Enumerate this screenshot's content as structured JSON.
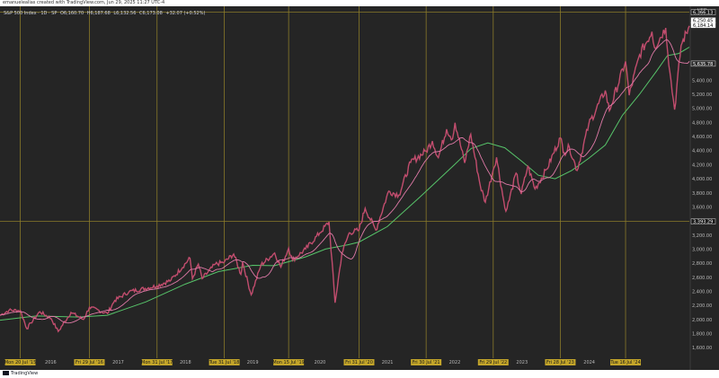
{
  "header": {
    "credit": "emanuelealias created with TradingView.com, Jun 29, 2025 11:27 UTC-4"
  },
  "legend": {
    "symbol": "S&P 500 Index · 1D · SP",
    "open": "O6,160.70",
    "high": "H6,187.68",
    "low": "L6,132.56",
    "close": "C6,173.08",
    "change": "+32.07 (+0.52%)"
  },
  "footer": {
    "logo": "TradingView"
  },
  "colors": {
    "background": "#252525",
    "grid": "#8a7a2a",
    "price": "#c24d6e",
    "ma_fast": "#e07aa8",
    "ma_slow": "#57c46a",
    "axis_text": "#b8b8b8",
    "tag_fill": "#c4a62a"
  },
  "chart_data": {
    "type": "line",
    "title": "",
    "currency": "USD",
    "xlabel": "",
    "ylabel": "",
    "xlim": [
      "2015-04-01",
      "2025-06-27"
    ],
    "ylim": [
      1500,
      6400
    ],
    "y_ticks": [
      1600,
      1800,
      2000,
      2200,
      2400,
      2600,
      2800,
      3000,
      3200,
      3400,
      3600,
      3800,
      4000,
      4200,
      4400,
      4600,
      4800,
      5000,
      5200,
      5400
    ],
    "y_tick_labels": [
      "1,600.00",
      "1,800.00",
      "2,000.00",
      "2,200.00",
      "2,400.00",
      "2,600.00",
      "2,800.00",
      "3,000.00",
      "3,200.00",
      "3,400.00",
      "3,600.00",
      "3,800.00",
      "4,000.00",
      "4,200.00",
      "4,400.00",
      "4,600.00",
      "4,800.00",
      "5,000.00",
      "5,200.00",
      "5,400.00"
    ],
    "year_labels": [
      {
        "date": "2016-01-01",
        "label": "2016"
      },
      {
        "date": "2017-01-01",
        "label": "2017"
      },
      {
        "date": "2018-01-01",
        "label": "2018"
      },
      {
        "date": "2019-01-01",
        "label": "2019"
      },
      {
        "date": "2020-01-01",
        "label": "2020"
      },
      {
        "date": "2021-01-01",
        "label": "2021"
      },
      {
        "date": "2022-01-01",
        "label": "2022"
      },
      {
        "date": "2023-01-01",
        "label": "2023"
      },
      {
        "date": "2024-01-01",
        "label": "2024"
      }
    ],
    "vertical_markers": [
      {
        "date": "2015-07-20",
        "label": "Mon 20 Jul '15"
      },
      {
        "date": "2016-07-29",
        "label": "Fri 29 Jul '16"
      },
      {
        "date": "2017-07-31",
        "label": "Mon 31 Jul '17"
      },
      {
        "date": "2018-07-31",
        "label": "Tue 31 Jul '18"
      },
      {
        "date": "2019-07-15",
        "label": "Mon 15 Jul '19"
      },
      {
        "date": "2020-07-31",
        "label": "Fri 31 Jul '20"
      },
      {
        "date": "2021-07-30",
        "label": "Fri 30 Jul '21"
      },
      {
        "date": "2022-07-29",
        "label": "Fri 29 Jul '22"
      },
      {
        "date": "2023-07-28",
        "label": "Fri 28 Jul '23"
      },
      {
        "date": "2024-07-16",
        "label": "Tue 16 Jul '24"
      }
    ],
    "horizontal_markers": [
      {
        "value": 6366.13,
        "label": "6,366.13"
      },
      {
        "value": 3393.29,
        "label": "3,393.29"
      }
    ],
    "price_tags": [
      {
        "value": 6250.45,
        "label": "6,250.45"
      },
      {
        "value": 6184.14,
        "label": "6,184.14"
      },
      {
        "value": 5635.78,
        "label": "5,635.78"
      }
    ],
    "series": [
      {
        "role": "price",
        "dates": [
          "2015-04-01",
          "2015-05-20",
          "2015-07-20",
          "2015-08-25",
          "2015-09-15",
          "2015-11-03",
          "2016-01-04",
          "2016-02-11",
          "2016-04-20",
          "2016-06-27",
          "2016-07-29",
          "2016-11-04",
          "2016-12-13",
          "2017-03-01",
          "2017-07-31",
          "2017-10-15",
          "2018-01-26",
          "2018-02-08",
          "2018-03-12",
          "2018-04-02",
          "2018-06-12",
          "2018-07-31",
          "2018-09-20",
          "2018-10-29",
          "2018-11-07",
          "2018-12-24",
          "2019-02-15",
          "2019-04-30",
          "2019-06-03",
          "2019-07-15",
          "2019-08-05",
          "2019-10-15",
          "2019-12-31",
          "2020-02-19",
          "2020-03-23",
          "2020-04-29",
          "2020-06-08",
          "2020-07-31",
          "2020-09-02",
          "2020-10-30",
          "2021-01-08",
          "2021-03-04",
          "2021-05-07",
          "2021-07-30",
          "2021-09-02",
          "2021-10-04",
          "2021-11-18",
          "2021-12-20",
          "2022-01-03",
          "2022-02-24",
          "2022-03-29",
          "2022-05-20",
          "2022-06-16",
          "2022-07-29",
          "2022-08-16",
          "2022-09-30",
          "2022-10-12",
          "2022-11-30",
          "2022-12-28",
          "2023-02-02",
          "2023-03-13",
          "2023-05-15",
          "2023-07-28",
          "2023-08-18",
          "2023-09-15",
          "2023-10-27",
          "2023-12-29",
          "2024-03-28",
          "2024-04-19",
          "2024-07-16",
          "2024-08-05",
          "2024-09-30",
          "2024-12-06",
          "2024-12-20",
          "2025-02-19",
          "2025-03-13",
          "2025-04-08",
          "2025-05-13",
          "2025-06-27"
        ],
        "values": [
          2060,
          2130,
          2128,
          1867,
          1950,
          2110,
          2012,
          1829,
          2100,
          2000,
          2173,
          2085,
          2270,
          2395,
          2477,
          2560,
          2872,
          2580,
          2786,
          2581,
          2786,
          2816,
          2930,
          2641,
          2813,
          2351,
          2775,
          2945,
          2744,
          3014,
          2844,
          3000,
          3230,
          3386,
          2237,
          2940,
          3232,
          3271,
          3580,
          3270,
          3824,
          3768,
          4232,
          4395,
          4536,
          4300,
          4704,
          4568,
          4796,
          4225,
          4631,
          3900,
          3667,
          4130,
          4305,
          3585,
          3577,
          4080,
          3783,
          4179,
          3855,
          4136,
          4582,
          4370,
          4450,
          4117,
          4770,
          5254,
          4967,
          5667,
          5186,
          5762,
          6090,
          5867,
          6144,
          5521,
          4982,
          5892,
          6173
        ]
      },
      {
        "role": "moving_average_slow",
        "dates": [
          "2015-04-01",
          "2015-10-15",
          "2016-06-01",
          "2016-11-04",
          "2017-06-01",
          "2017-12-29",
          "2018-06-29",
          "2018-12-31",
          "2019-04-30",
          "2019-10-15",
          "2020-01-31",
          "2020-05-29",
          "2020-07-31",
          "2020-12-31",
          "2021-06-30",
          "2021-12-31",
          "2022-03-31",
          "2022-06-30",
          "2022-09-30",
          "2022-12-30",
          "2023-03-31",
          "2023-06-30",
          "2023-09-29",
          "2023-12-29",
          "2024-03-28",
          "2024-06-28",
          "2024-09-30",
          "2024-12-31",
          "2025-02-28",
          "2025-04-30",
          "2025-06-27"
        ],
        "values": [
          1990,
          2050,
          2035,
          2060,
          2250,
          2500,
          2680,
          2770,
          2765,
          2890,
          3000,
          3060,
          3100,
          3320,
          3750,
          4200,
          4430,
          4510,
          4440,
          4250,
          4050,
          4000,
          4120,
          4290,
          4480,
          4900,
          5200,
          5530,
          5750,
          5780,
          5870
        ]
      }
    ],
    "ma_fast_window": 20
  }
}
